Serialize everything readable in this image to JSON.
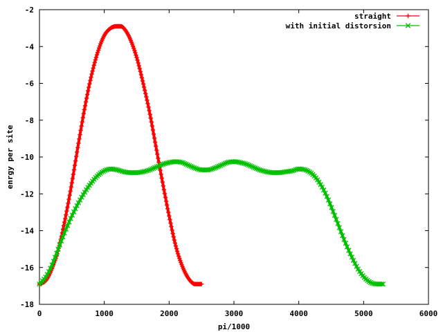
{
  "chart_data": {
    "type": "line",
    "title": "",
    "xlabel": "pi/1000",
    "ylabel": "enrgy per site",
    "xlim": [
      0,
      6000
    ],
    "ylim": [
      -18,
      -2
    ],
    "x_ticks": [
      0,
      1000,
      2000,
      3000,
      4000,
      5000,
      6000
    ],
    "y_ticks": [
      -18,
      -16,
      -14,
      -12,
      -10,
      -8,
      -6,
      -4,
      -2
    ],
    "grid": false,
    "legend_position": "top-right",
    "series": [
      {
        "name": "straight",
        "color": "#ff0000",
        "marker": "plus",
        "x": [
          0,
          100,
          200,
          300,
          400,
          500,
          600,
          700,
          800,
          900,
          1000,
          1100,
          1200,
          1250,
          1300,
          1400,
          1500,
          1600,
          1700,
          1800,
          1900,
          2000,
          2100,
          2200,
          2300,
          2400,
          2500
        ],
        "y": [
          -16.9,
          -16.7,
          -16.0,
          -14.9,
          -13.3,
          -11.4,
          -9.3,
          -7.3,
          -5.6,
          -4.3,
          -3.4,
          -3.0,
          -2.9,
          -2.9,
          -3.0,
          -3.6,
          -4.6,
          -6.0,
          -7.6,
          -9.5,
          -11.4,
          -13.2,
          -14.8,
          -15.9,
          -16.6,
          -16.9,
          -16.9
        ]
      },
      {
        "name": "with initial distorsion",
        "color": "#00c000",
        "marker": "cross",
        "x": [
          0,
          100,
          200,
          300,
          400,
          500,
          600,
          700,
          800,
          900,
          1000,
          1100,
          1200,
          1300,
          1400,
          1500,
          1600,
          1700,
          1800,
          1900,
          2000,
          2100,
          2200,
          2300,
          2400,
          2500,
          2600,
          2700,
          2800,
          2900,
          3000,
          3100,
          3200,
          3300,
          3400,
          3500,
          3600,
          3700,
          3800,
          3900,
          4000,
          4100,
          4200,
          4300,
          4400,
          4500,
          4600,
          4700,
          4800,
          4900,
          5000,
          5100,
          5200,
          5300
        ],
        "y": [
          -16.9,
          -16.5,
          -15.8,
          -14.9,
          -14.0,
          -13.2,
          -12.5,
          -11.9,
          -11.4,
          -11.0,
          -10.75,
          -10.65,
          -10.7,
          -10.8,
          -10.85,
          -10.85,
          -10.8,
          -10.7,
          -10.55,
          -10.4,
          -10.3,
          -10.25,
          -10.3,
          -10.45,
          -10.6,
          -10.7,
          -10.7,
          -10.6,
          -10.45,
          -10.3,
          -10.25,
          -10.3,
          -10.4,
          -10.55,
          -10.7,
          -10.8,
          -10.85,
          -10.85,
          -10.8,
          -10.75,
          -10.65,
          -10.7,
          -10.9,
          -11.3,
          -11.9,
          -12.7,
          -13.6,
          -14.5,
          -15.3,
          -16.0,
          -16.5,
          -16.8,
          -16.9,
          -16.9
        ]
      }
    ]
  }
}
